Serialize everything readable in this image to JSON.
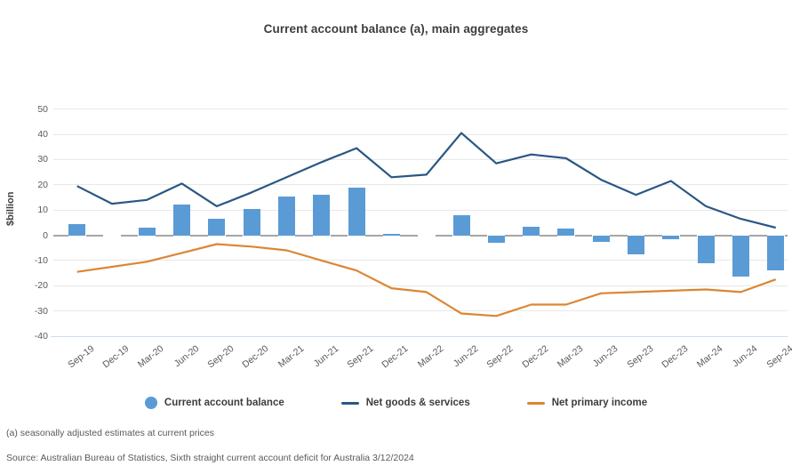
{
  "title": "Current account balance (a), main aggregates",
  "footnotes": {
    "note_a": "(a) seasonally adjusted estimates at current prices",
    "source": "Source: Australian Bureau of Statistics, Sixth straight current account deficit for Australia 3/12/2024"
  },
  "colors": {
    "bar_blue": "#5B9BD5",
    "goods_navy": "#2A5783",
    "primary_orange": "#DC8633",
    "gridline": "#e8e8e8",
    "zero_line": "#a6a6a6",
    "axis_line": "#cfdded",
    "tick_text": "#595959",
    "title_text": "#3d3d3d"
  },
  "chart_data": {
    "type": "combo-bar-line",
    "title": "Current account balance (a), main aggregates",
    "ylabel": "$billion",
    "xlabel": "",
    "ylim": [
      -40,
      52
    ],
    "yticks": [
      50,
      40,
      30,
      20,
      10,
      0,
      -10,
      -20,
      -30,
      -40
    ],
    "grid": true,
    "legend_position": "bottom",
    "categories": [
      "Sep-19",
      "Dec-19",
      "Mar-20",
      "Jun-20",
      "Sep-20",
      "Dec-20",
      "Mar-21",
      "Jun-21",
      "Sep-21",
      "Dec-21",
      "Mar-22",
      "Jun-22",
      "Sep-22",
      "Dec-22",
      "Mar-23",
      "Jun-23",
      "Sep-23",
      "Dec-23",
      "Mar-24",
      "Jun-24",
      "Sep-24"
    ],
    "series": [
      {
        "name": "Current account balance",
        "type": "bar",
        "color": "#5B9BD5",
        "values": [
          4.5,
          0,
          3,
          12,
          6.5,
          10.5,
          15.5,
          16,
          19,
          0.5,
          0,
          8,
          -3,
          3.5,
          2.5,
          -2.5,
          -7.5,
          -1.5,
          -11,
          -16.5,
          -14
        ]
      },
      {
        "name": "Net goods & services",
        "type": "line",
        "color": "#2A5783",
        "values": [
          19.5,
          12.5,
          14,
          20.5,
          11.5,
          17,
          23,
          29,
          34.5,
          23,
          24,
          40.5,
          28.5,
          32,
          30.5,
          22,
          16,
          21.5,
          11.5,
          6.5,
          3
        ]
      },
      {
        "name": "Net primary income",
        "type": "line",
        "color": "#DC8633",
        "values": [
          -14.5,
          -12.5,
          -10.5,
          -7,
          -3.5,
          -4.5,
          -6,
          -10,
          -14,
          -21,
          -22.5,
          -31,
          -32,
          -27.5,
          -27.5,
          -23,
          -22.5,
          -22,
          -21.5,
          -22.5,
          -17.5
        ]
      }
    ]
  }
}
